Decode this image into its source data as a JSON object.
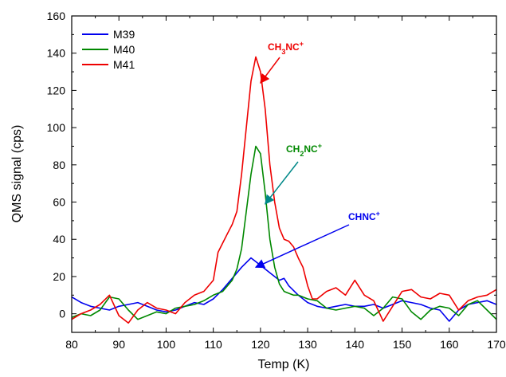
{
  "chart_data": {
    "type": "line",
    "title": "",
    "xlabel": "Temp (K)",
    "ylabel": "QMS signal (cps)",
    "xlim": [
      80,
      170
    ],
    "ylim": [
      -10,
      160
    ],
    "xticks": [
      80,
      90,
      100,
      110,
      120,
      130,
      140,
      150,
      160,
      170
    ],
    "yticks": [
      0,
      20,
      40,
      60,
      80,
      100,
      120,
      140,
      160
    ],
    "grid": false,
    "legend_position": "top-left",
    "series": [
      {
        "name": "M39",
        "color": "#0000ee",
        "x": [
          80,
          82,
          84,
          86,
          88,
          90,
          92,
          94,
          96,
          98,
          100,
          102,
          104,
          106,
          108,
          110,
          112,
          114,
          116,
          118,
          119,
          120,
          122,
          124,
          125,
          126,
          128,
          130,
          132,
          134,
          136,
          138,
          140,
          142,
          144,
          146,
          148,
          150,
          152,
          154,
          156,
          158,
          160,
          162,
          164,
          166,
          168,
          170
        ],
        "y": [
          9,
          6,
          4,
          3,
          2,
          4,
          5,
          6,
          4,
          2,
          1,
          2,
          4,
          6,
          5,
          8,
          13,
          19,
          25,
          30,
          28,
          26,
          22,
          18,
          19,
          15,
          10,
          6,
          4,
          3,
          4,
          5,
          4,
          4,
          5,
          3,
          5,
          7,
          6,
          5,
          3,
          2,
          -4,
          2,
          5,
          6,
          7,
          5
        ]
      },
      {
        "name": "M40",
        "color": "#008800",
        "x": [
          80,
          82,
          84,
          86,
          88,
          90,
          92,
          94,
          96,
          98,
          100,
          102,
          104,
          106,
          108,
          110,
          112,
          114,
          115,
          116,
          117,
          118,
          119,
          120,
          121,
          122,
          123,
          124,
          125,
          126,
          127,
          128,
          130,
          132,
          134,
          136,
          138,
          140,
          142,
          144,
          146,
          148,
          150,
          152,
          154,
          156,
          158,
          160,
          162,
          164,
          166,
          168,
          170
        ],
        "y": [
          -2,
          0,
          -1,
          2,
          9,
          8,
          2,
          -3,
          -1,
          1,
          0,
          3,
          4,
          5,
          7,
          10,
          12,
          18,
          24,
          35,
          55,
          75,
          90,
          86,
          65,
          40,
          25,
          16,
          12,
          11,
          10,
          10,
          8,
          7,
          3,
          2,
          3,
          4,
          3,
          -1,
          3,
          9,
          8,
          1,
          -3,
          2,
          4,
          3,
          -1,
          5,
          7,
          2,
          -3
        ]
      },
      {
        "name": "M41",
        "color": "#ee0000",
        "x": [
          80,
          82,
          84,
          86,
          88,
          90,
          92,
          94,
          96,
          98,
          100,
          102,
          104,
          106,
          108,
          110,
          111,
          112,
          113,
          114,
          115,
          116,
          117,
          118,
          119,
          120,
          121,
          122,
          123,
          124,
          125,
          126,
          127,
          128,
          129,
          130,
          131,
          132,
          134,
          136,
          138,
          140,
          142,
          144,
          146,
          148,
          150,
          152,
          154,
          156,
          158,
          160,
          162,
          164,
          166,
          168,
          170
        ],
        "y": [
          -3,
          0,
          2,
          5,
          10,
          -1,
          -5,
          2,
          6,
          3,
          2,
          0,
          6,
          10,
          12,
          18,
          33,
          38,
          43,
          48,
          55,
          75,
          100,
          125,
          138,
          130,
          110,
          80,
          60,
          46,
          40,
          39,
          36,
          30,
          25,
          15,
          8,
          8,
          12,
          14,
          10,
          18,
          10,
          7,
          -4,
          4,
          12,
          13,
          9,
          8,
          11,
          10,
          2,
          7,
          9,
          10,
          13
        ]
      }
    ],
    "annotations": [
      {
        "label_main": "CH",
        "label_sub": "3",
        "label_rest": "NC",
        "label_sup": "+",
        "color": "#ee0000",
        "target_x": 120,
        "target_y": 124
      },
      {
        "label_main": "CH",
        "label_sub": "2",
        "label_rest": "NC",
        "label_sup": "+",
        "color": "#008800",
        "target_x": 121,
        "target_y": 59
      },
      {
        "label_main": "CHNC",
        "label_sub": "",
        "label_rest": "",
        "label_sup": "+",
        "color": "#0000ee",
        "target_x": 119,
        "target_y": 25
      }
    ]
  }
}
